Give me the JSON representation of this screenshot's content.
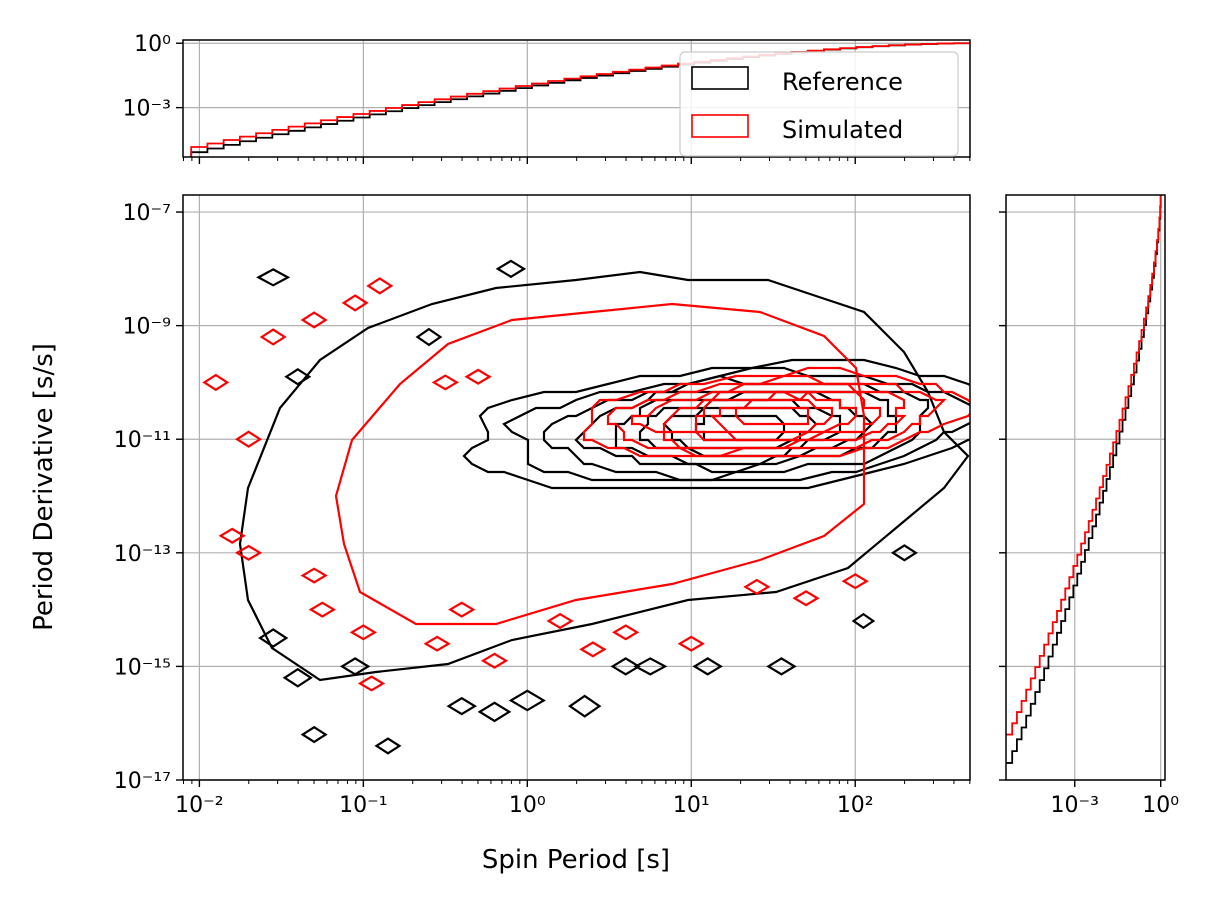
{
  "chart_data": [
    {
      "id": "main",
      "type": "contour",
      "xlabel": "Spin Period [s]",
      "ylabel": "Period Derivative [s/s]",
      "xscale": "log",
      "yscale": "log",
      "xlim_exp": [
        -2.1,
        2.7
      ],
      "ylim_exp": [
        -17,
        -6.7
      ],
      "x_ticks": [
        {
          "exp": -2,
          "label": "10⁻²"
        },
        {
          "exp": -1,
          "label": "10⁻¹"
        },
        {
          "exp": 0,
          "label": "10⁰"
        },
        {
          "exp": 1,
          "label": "10¹"
        },
        {
          "exp": 2,
          "label": "10²"
        }
      ],
      "y_ticks": [
        {
          "exp": -17,
          "label": "10⁻¹⁷"
        },
        {
          "exp": -15,
          "label": "10⁻¹⁵"
        },
        {
          "exp": -13,
          "label": "10⁻¹³"
        },
        {
          "exp": -11,
          "label": "10⁻¹¹"
        },
        {
          "exp": -9,
          "label": "10⁻⁹"
        },
        {
          "exp": -7,
          "label": "10⁻⁷"
        }
      ],
      "grid": true,
      "series": [
        {
          "name": "Reference",
          "color": "#000000",
          "center_exp": [
            1.3,
            -10.8
          ],
          "angle_deg": 15,
          "contours_main": [
            {
              "a": 0.28,
              "b": 0.25
            },
            {
              "a": 0.45,
              "b": 0.37
            },
            {
              "a": 0.62,
              "b": 0.47
            },
            {
              "a": 0.8,
              "b": 0.57
            },
            {
              "a": 0.98,
              "b": 0.68
            },
            {
              "a": 1.18,
              "b": 0.8
            },
            {
              "a": 1.42,
              "b": 0.92
            },
            {
              "a": 1.72,
              "b": 1.05
            }
          ],
          "outer_contour": [
            [
              1.0,
              -8.15
            ],
            [
              1.45,
              -8.2
            ],
            [
              1.75,
              -8.45
            ],
            [
              2.05,
              -8.7
            ],
            [
              2.3,
              -9.5
            ],
            [
              2.45,
              -10.2
            ],
            [
              2.55,
              -10.9
            ],
            [
              2.7,
              -11.3
            ],
            [
              2.55,
              -11.9
            ],
            [
              2.25,
              -12.6
            ],
            [
              1.95,
              -13.2
            ],
            [
              1.5,
              -13.7
            ],
            [
              1.0,
              -13.9
            ],
            [
              0.4,
              -14.3
            ],
            [
              -0.1,
              -14.6
            ],
            [
              -0.5,
              -14.9
            ],
            [
              -0.9,
              -15.1
            ],
            [
              -1.25,
              -15.2
            ],
            [
              -1.55,
              -14.7
            ],
            [
              -1.7,
              -13.8
            ],
            [
              -1.75,
              -12.8
            ],
            [
              -1.7,
              -11.8
            ],
            [
              -1.5,
              -10.5
            ],
            [
              -1.25,
              -9.6
            ],
            [
              -0.95,
              -9.0
            ],
            [
              -0.6,
              -8.6
            ],
            [
              -0.2,
              -8.4
            ],
            [
              0.3,
              -8.2
            ],
            [
              0.7,
              -8.1
            ],
            [
              1.0,
              -8.15
            ]
          ],
          "islands": [
            [
              -1.55,
              -8.15,
              0.09,
              0.14
            ],
            [
              -1.4,
              -9.9,
              0.07,
              0.13
            ],
            [
              -1.55,
              -14.5,
              0.08,
              0.15
            ],
            [
              -1.4,
              -15.2,
              0.08,
              0.15
            ],
            [
              -1.05,
              -15.0,
              0.08,
              0.14
            ],
            [
              -1.3,
              -16.2,
              0.07,
              0.13
            ],
            [
              -0.85,
              -16.4,
              0.07,
              0.13
            ],
            [
              -0.4,
              -15.7,
              0.08,
              0.14
            ],
            [
              -0.2,
              -15.8,
              0.09,
              0.16
            ],
            [
              0.0,
              -15.6,
              0.1,
              0.17
            ],
            [
              0.35,
              -15.7,
              0.09,
              0.18
            ],
            [
              0.6,
              -15.0,
              0.08,
              0.14
            ],
            [
              0.75,
              -15.0,
              0.09,
              0.14
            ],
            [
              1.1,
              -15.0,
              0.08,
              0.14
            ],
            [
              1.55,
              -15.0,
              0.08,
              0.14
            ],
            [
              2.05,
              -14.2,
              0.06,
              0.12
            ],
            [
              2.3,
              -13.0,
              0.07,
              0.13
            ],
            [
              -0.6,
              -9.2,
              0.07,
              0.14
            ],
            [
              -0.1,
              -8.0,
              0.08,
              0.14
            ]
          ]
        },
        {
          "name": "Simulated",
          "color": "#ff0000",
          "center_exp": [
            1.5,
            -10.6
          ],
          "angle_deg": 14,
          "contours_main": [
            {
              "a": 0.22,
              "b": 0.2
            },
            {
              "a": 0.36,
              "b": 0.28
            },
            {
              "a": 0.5,
              "b": 0.36
            },
            {
              "a": 0.65,
              "b": 0.44
            },
            {
              "a": 0.82,
              "b": 0.53
            },
            {
              "a": 1.0,
              "b": 0.62
            },
            {
              "a": 1.2,
              "b": 0.72
            }
          ],
          "outer_contour": [
            [
              0.9,
              -8.6
            ],
            [
              1.4,
              -8.7
            ],
            [
              1.8,
              -9.2
            ],
            [
              2.0,
              -9.8
            ],
            [
              2.05,
              -10.6
            ],
            [
              2.05,
              -12.2
            ],
            [
              1.8,
              -12.7
            ],
            [
              1.4,
              -13.1
            ],
            [
              0.9,
              -13.5
            ],
            [
              0.3,
              -13.9
            ],
            [
              -0.2,
              -14.2
            ],
            [
              -0.7,
              -14.3
            ],
            [
              -1.0,
              -13.7
            ],
            [
              -1.1,
              -12.9
            ],
            [
              -1.15,
              -12.0
            ],
            [
              -1.05,
              -11.0
            ],
            [
              -0.8,
              -10.0
            ],
            [
              -0.5,
              -9.3
            ],
            [
              -0.1,
              -8.9
            ],
            [
              0.4,
              -8.7
            ],
            [
              0.9,
              -8.6
            ]
          ],
          "islands": [
            [
              -1.9,
              -10.0,
              0.07,
              0.13
            ],
            [
              -1.55,
              -9.2,
              0.07,
              0.13
            ],
            [
              -1.3,
              -8.9,
              0.07,
              0.13
            ],
            [
              -1.05,
              -8.6,
              0.07,
              0.13
            ],
            [
              -0.9,
              -8.3,
              0.07,
              0.13
            ],
            [
              -1.7,
              -11.0,
              0.07,
              0.13
            ],
            [
              -1.8,
              -12.7,
              0.07,
              0.12
            ],
            [
              -1.7,
              -13.0,
              0.07,
              0.12
            ],
            [
              -1.3,
              -13.4,
              0.07,
              0.12
            ],
            [
              -1.25,
              -14.0,
              0.07,
              0.12
            ],
            [
              -1.0,
              -14.4,
              0.07,
              0.12
            ],
            [
              -0.55,
              -14.6,
              0.07,
              0.12
            ],
            [
              -0.4,
              -14.0,
              0.07,
              0.12
            ],
            [
              -0.2,
              -14.9,
              0.07,
              0.12
            ],
            [
              0.2,
              -14.2,
              0.07,
              0.12
            ],
            [
              0.4,
              -14.7,
              0.07,
              0.12
            ],
            [
              0.6,
              -14.4,
              0.07,
              0.12
            ],
            [
              1.0,
              -14.6,
              0.07,
              0.12
            ],
            [
              1.4,
              -13.6,
              0.07,
              0.12
            ],
            [
              1.7,
              -13.8,
              0.07,
              0.12
            ],
            [
              2.0,
              -13.5,
              0.07,
              0.12
            ],
            [
              -0.95,
              -15.3,
              0.07,
              0.12
            ],
            [
              -0.5,
              -10.0,
              0.07,
              0.12
            ],
            [
              -0.3,
              -9.9,
              0.07,
              0.12
            ]
          ]
        }
      ]
    },
    {
      "id": "top-marginal",
      "type": "step",
      "xscale": "log",
      "yscale": "log",
      "xlim_exp": [
        -2.1,
        2.7
      ],
      "ylim_exp": [
        -5.3,
        0.15
      ],
      "y_ticks": [
        {
          "exp": 0,
          "label": "10⁰"
        },
        {
          "exp": -3,
          "label": "10⁻³"
        }
      ],
      "series": [
        {
          "name": "Reference",
          "color": "#000000",
          "x_exp": [
            -2.05,
            2.7
          ],
          "y_exp_start": -5.25,
          "n_steps": 48
        },
        {
          "name": "Simulated",
          "color": "#ff0000",
          "x_exp": [
            -2.05,
            2.7
          ],
          "y_exp_start": -5.0,
          "n_steps": 48
        }
      ],
      "legend": {
        "placement": "top-right",
        "entries": [
          {
            "label": "Reference",
            "color": "#000000"
          },
          {
            "label": "Simulated",
            "color": "#ff0000"
          }
        ]
      }
    },
    {
      "id": "right-marginal",
      "type": "step",
      "xscale": "log",
      "yscale": "log",
      "xlim_exp": [
        -5.4,
        0.15
      ],
      "ylim_exp": [
        -17,
        -6.7
      ],
      "x_ticks": [
        {
          "exp": -3,
          "label": "10⁻³"
        },
        {
          "exp": 0,
          "label": "10⁰"
        }
      ],
      "series": [
        {
          "name": "Reference",
          "color": "#000000",
          "y_exp": [
            -16.7,
            -6.7
          ],
          "x_exp_start": -5.35,
          "n_steps": 48
        },
        {
          "name": "Simulated",
          "color": "#ff0000",
          "y_exp": [
            -16.2,
            -6.7
          ],
          "x_exp_start": -5.35,
          "n_steps": 48
        }
      ]
    }
  ]
}
